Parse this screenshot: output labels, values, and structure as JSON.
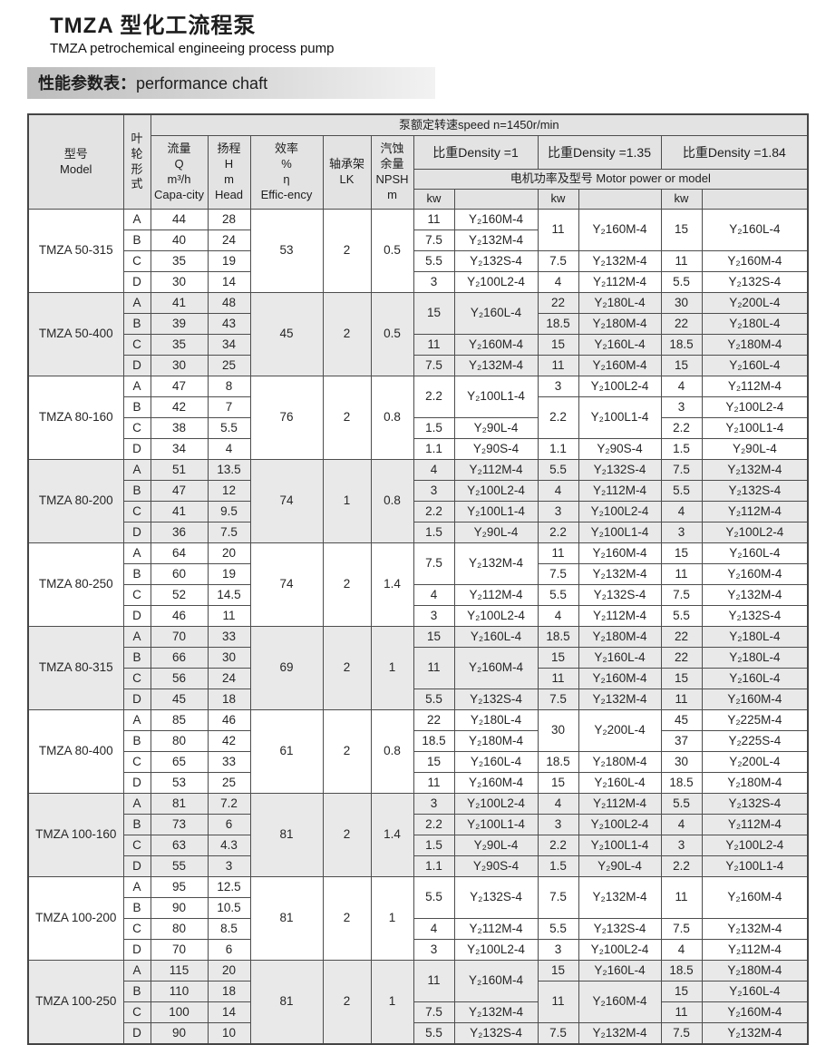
{
  "page": {
    "title_zh": "TMZA 型化工流程泵",
    "title_en": "TMZA petrochemical engineeing process pump",
    "section_zh": "性能参数表：",
    "section_en": "performance chaft"
  },
  "table": {
    "header": {
      "model": "型号\nModel",
      "impeller": "叶\n轮\n形\n式",
      "capacity": "流量\nQ\nm³/h\nCapa-city",
      "head": "扬程\nH\nm\nHead",
      "efficiency": "效率\n%\nη\nEffic-ency",
      "bearing": "轴承架\nLK",
      "npsh": "汽蚀\n余量\nNPSH\nm",
      "speed": "泵额定转速speed n=1450r/min",
      "density1": "比重Density =1",
      "density135": "比重Density =1.35",
      "density184": "比重Density =1.84",
      "motor": "电机功率及型号  Motor power or model",
      "kw": "kw"
    },
    "blocks": [
      {
        "model": "TMZA 50-315",
        "efficiency": "53",
        "bearing": "2",
        "npsh": "0.5",
        "rows": [
          {
            "type": "A",
            "q": "44",
            "h": "28"
          },
          {
            "type": "B",
            "q": "40",
            "h": "24"
          },
          {
            "type": "C",
            "q": "35",
            "h": "19"
          },
          {
            "type": "D",
            "q": "30",
            "h": "14"
          }
        ],
        "d1": [
          {
            "span": 1,
            "kw": "11",
            "model": "Y₂160M-4"
          },
          {
            "span": 1,
            "kw": "7.5",
            "model": "Y₂132M-4"
          },
          {
            "span": 1,
            "kw": "5.5",
            "model": "Y₂132S-4"
          },
          {
            "span": 1,
            "kw": "3",
            "model": "Y₂100L2-4"
          }
        ],
        "d135": [
          {
            "span": 2,
            "kw": "11",
            "model": "Y₂160M-4"
          },
          {
            "span": 1,
            "kw": "7.5",
            "model": "Y₂132M-4"
          },
          {
            "span": 1,
            "kw": "4",
            "model": "Y₂112M-4"
          }
        ],
        "d184": [
          {
            "span": 2,
            "kw": "15",
            "model": "Y₂160L-4"
          },
          {
            "span": 1,
            "kw": "11",
            "model": "Y₂160M-4"
          },
          {
            "span": 1,
            "kw": "5.5",
            "model": "Y₂132S-4"
          }
        ]
      },
      {
        "model": "TMZA 50-400",
        "efficiency": "45",
        "bearing": "2",
        "npsh": "0.5",
        "rows": [
          {
            "type": "A",
            "q": "41",
            "h": "48"
          },
          {
            "type": "B",
            "q": "39",
            "h": "43"
          },
          {
            "type": "C",
            "q": "35",
            "h": "34"
          },
          {
            "type": "D",
            "q": "30",
            "h": "25"
          }
        ],
        "d1": [
          {
            "span": 2,
            "kw": "15",
            "model": "Y₂160L-4"
          },
          {
            "span": 1,
            "kw": "11",
            "model": "Y₂160M-4"
          },
          {
            "span": 1,
            "kw": "7.5",
            "model": "Y₂132M-4"
          }
        ],
        "d135": [
          {
            "span": 1,
            "kw": "22",
            "model": "Y₂180L-4"
          },
          {
            "span": 1,
            "kw": "18.5",
            "model": "Y₂180M-4"
          },
          {
            "span": 1,
            "kw": "15",
            "model": "Y₂160L-4"
          },
          {
            "span": 1,
            "kw": "11",
            "model": "Y₂160M-4"
          }
        ],
        "d184": [
          {
            "span": 1,
            "kw": "30",
            "model": "Y₂200L-4"
          },
          {
            "span": 1,
            "kw": "22",
            "model": "Y₂180L-4"
          },
          {
            "span": 1,
            "kw": "18.5",
            "model": "Y₂180M-4"
          },
          {
            "span": 1,
            "kw": "15",
            "model": "Y₂160L-4"
          }
        ]
      },
      {
        "model": "TMZA 80-160",
        "efficiency": "76",
        "bearing": "2",
        "npsh": "0.8",
        "rows": [
          {
            "type": "A",
            "q": "47",
            "h": "8"
          },
          {
            "type": "B",
            "q": "42",
            "h": "7"
          },
          {
            "type": "C",
            "q": "38",
            "h": "5.5"
          },
          {
            "type": "D",
            "q": "34",
            "h": "4"
          }
        ],
        "d1": [
          {
            "span": 2,
            "kw": "2.2",
            "model": "Y₂100L1-4"
          },
          {
            "span": 1,
            "kw": "1.5",
            "model": "Y₂90L-4"
          },
          {
            "span": 1,
            "kw": "1.1",
            "model": "Y₂90S-4"
          }
        ],
        "d135": [
          {
            "span": 1,
            "kw": "3",
            "model": "Y₂100L2-4"
          },
          {
            "span": 2,
            "kw": "2.2",
            "model": "Y₂100L1-4"
          },
          {
            "span": 1,
            "kw": "1.1",
            "model": "Y₂90S-4"
          }
        ],
        "d184": [
          {
            "span": 1,
            "kw": "4",
            "model": "Y₂112M-4"
          },
          {
            "span": 1,
            "kw": "3",
            "model": "Y₂100L2-4"
          },
          {
            "span": 1,
            "kw": "2.2",
            "model": "Y₂100L1-4"
          },
          {
            "span": 1,
            "kw": "1.5",
            "model": "Y₂90L-4"
          }
        ]
      },
      {
        "model": "TMZA 80-200",
        "efficiency": "74",
        "bearing": "1",
        "npsh": "0.8",
        "rows": [
          {
            "type": "A",
            "q": "51",
            "h": "13.5"
          },
          {
            "type": "B",
            "q": "47",
            "h": "12"
          },
          {
            "type": "C",
            "q": "41",
            "h": "9.5"
          },
          {
            "type": "D",
            "q": "36",
            "h": "7.5"
          }
        ],
        "d1": [
          {
            "span": 1,
            "kw": "4",
            "model": "Y₂112M-4"
          },
          {
            "span": 1,
            "kw": "3",
            "model": "Y₂100L2-4"
          },
          {
            "span": 1,
            "kw": "2.2",
            "model": "Y₂100L1-4"
          },
          {
            "span": 1,
            "kw": "1.5",
            "model": "Y₂90L-4"
          }
        ],
        "d135": [
          {
            "span": 1,
            "kw": "5.5",
            "model": "Y₂132S-4"
          },
          {
            "span": 1,
            "kw": "4",
            "model": "Y₂112M-4"
          },
          {
            "span": 1,
            "kw": "3",
            "model": "Y₂100L2-4"
          },
          {
            "span": 1,
            "kw": "2.2",
            "model": "Y₂100L1-4"
          }
        ],
        "d184": [
          {
            "span": 1,
            "kw": "7.5",
            "model": "Y₂132M-4"
          },
          {
            "span": 1,
            "kw": "5.5",
            "model": "Y₂132S-4"
          },
          {
            "span": 1,
            "kw": "4",
            "model": "Y₂112M-4"
          },
          {
            "span": 1,
            "kw": "3",
            "model": "Y₂100L2-4"
          }
        ]
      },
      {
        "model": "TMZA 80-250",
        "efficiency": "74",
        "bearing": "2",
        "npsh": "1.4",
        "rows": [
          {
            "type": "A",
            "q": "64",
            "h": "20"
          },
          {
            "type": "B",
            "q": "60",
            "h": "19"
          },
          {
            "type": "C",
            "q": "52",
            "h": "14.5"
          },
          {
            "type": "D",
            "q": "46",
            "h": "11"
          }
        ],
        "d1": [
          {
            "span": 2,
            "kw": "7.5",
            "model": "Y₂132M-4"
          },
          {
            "span": 1,
            "kw": "4",
            "model": "Y₂112M-4"
          },
          {
            "span": 1,
            "kw": "3",
            "model": "Y₂100L2-4"
          }
        ],
        "d135": [
          {
            "span": 1,
            "kw": "11",
            "model": "Y₂160M-4"
          },
          {
            "span": 1,
            "kw": "7.5",
            "model": "Y₂132M-4"
          },
          {
            "span": 1,
            "kw": "5.5",
            "model": "Y₂132S-4"
          },
          {
            "span": 1,
            "kw": "4",
            "model": "Y₂112M-4"
          }
        ],
        "d184": [
          {
            "span": 1,
            "kw": "15",
            "model": "Y₂160L-4"
          },
          {
            "span": 1,
            "kw": "11",
            "model": "Y₂160M-4"
          },
          {
            "span": 1,
            "kw": "7.5",
            "model": "Y₂132M-4"
          },
          {
            "span": 1,
            "kw": "5.5",
            "model": "Y₂132S-4"
          }
        ]
      },
      {
        "model": "TMZA 80-315",
        "efficiency": "69",
        "bearing": "2",
        "npsh": "1",
        "rows": [
          {
            "type": "A",
            "q": "70",
            "h": "33"
          },
          {
            "type": "B",
            "q": "66",
            "h": "30"
          },
          {
            "type": "C",
            "q": "56",
            "h": "24"
          },
          {
            "type": "D",
            "q": "45",
            "h": "18"
          }
        ],
        "d1": [
          {
            "span": 1,
            "kw": "15",
            "model": "Y₂160L-4"
          },
          {
            "span": 2,
            "kw": "11",
            "model": "Y₂160M-4"
          },
          {
            "span": 1,
            "kw": "5.5",
            "model": "Y₂132S-4"
          }
        ],
        "d135": [
          {
            "span": 1,
            "kw": "18.5",
            "model": "Y₂180M-4"
          },
          {
            "span": 1,
            "kw": "15",
            "model": "Y₂160L-4"
          },
          {
            "span": 1,
            "kw": "11",
            "model": "Y₂160M-4"
          },
          {
            "span": 1,
            "kw": "7.5",
            "model": "Y₂132M-4"
          }
        ],
        "d184": [
          {
            "span": 1,
            "kw": "22",
            "model": "Y₂180L-4"
          },
          {
            "span": 1,
            "kw": "22",
            "model": "Y₂180L-4"
          },
          {
            "span": 1,
            "kw": "15",
            "model": "Y₂160L-4"
          },
          {
            "span": 1,
            "kw": "11",
            "model": "Y₂160M-4"
          }
        ]
      },
      {
        "model": "TMZA 80-400",
        "efficiency": "61",
        "bearing": "2",
        "npsh": "0.8",
        "rows": [
          {
            "type": "A",
            "q": "85",
            "h": "46"
          },
          {
            "type": "B",
            "q": "80",
            "h": "42"
          },
          {
            "type": "C",
            "q": "65",
            "h": "33"
          },
          {
            "type": "D",
            "q": "53",
            "h": "25"
          }
        ],
        "d1": [
          {
            "span": 1,
            "kw": "22",
            "model": "Y₂180L-4"
          },
          {
            "span": 1,
            "kw": "18.5",
            "model": "Y₂180M-4"
          },
          {
            "span": 1,
            "kw": "15",
            "model": "Y₂160L-4"
          },
          {
            "span": 1,
            "kw": "11",
            "model": "Y₂160M-4"
          }
        ],
        "d135": [
          {
            "span": 2,
            "kw": "30",
            "model": "Y₂200L-4"
          },
          {
            "span": 1,
            "kw": "18.5",
            "model": "Y₂180M-4"
          },
          {
            "span": 1,
            "kw": "15",
            "model": "Y₂160L-4"
          }
        ],
        "d184": [
          {
            "span": 1,
            "kw": "45",
            "model": "Y₂225M-4"
          },
          {
            "span": 1,
            "kw": "37",
            "model": "Y₂225S-4"
          },
          {
            "span": 1,
            "kw": "30",
            "model": "Y₂200L-4"
          },
          {
            "span": 1,
            "kw": "18.5",
            "model": "Y₂180M-4"
          }
        ]
      },
      {
        "model": "TMZA 100-160",
        "efficiency": "81",
        "bearing": "2",
        "npsh": "1.4",
        "rows": [
          {
            "type": "A",
            "q": "81",
            "h": "7.2"
          },
          {
            "type": "B",
            "q": "73",
            "h": "6"
          },
          {
            "type": "C",
            "q": "63",
            "h": "4.3"
          },
          {
            "type": "D",
            "q": "55",
            "h": "3"
          }
        ],
        "d1": [
          {
            "span": 1,
            "kw": "3",
            "model": "Y₂100L2-4"
          },
          {
            "span": 1,
            "kw": "2.2",
            "model": "Y₂100L1-4"
          },
          {
            "span": 1,
            "kw": "1.5",
            "model": "Y₂90L-4"
          },
          {
            "span": 1,
            "kw": "1.1",
            "model": "Y₂90S-4"
          }
        ],
        "d135": [
          {
            "span": 1,
            "kw": "4",
            "model": "Y₂112M-4"
          },
          {
            "span": 1,
            "kw": "3",
            "model": "Y₂100L2-4"
          },
          {
            "span": 1,
            "kw": "2.2",
            "model": "Y₂100L1-4"
          },
          {
            "span": 1,
            "kw": "1.5",
            "model": "Y₂90L-4"
          }
        ],
        "d184": [
          {
            "span": 1,
            "kw": "5.5",
            "model": "Y₂132S-4"
          },
          {
            "span": 1,
            "kw": "4",
            "model": "Y₂112M-4"
          },
          {
            "span": 1,
            "kw": "3",
            "model": "Y₂100L2-4"
          },
          {
            "span": 1,
            "kw": "2.2",
            "model": "Y₂100L1-4"
          }
        ]
      },
      {
        "model": "TMZA 100-200",
        "efficiency": "81",
        "bearing": "2",
        "npsh": "1",
        "rows": [
          {
            "type": "A",
            "q": "95",
            "h": "12.5"
          },
          {
            "type": "B",
            "q": "90",
            "h": "10.5"
          },
          {
            "type": "C",
            "q": "80",
            "h": "8.5"
          },
          {
            "type": "D",
            "q": "70",
            "h": "6"
          }
        ],
        "d1": [
          {
            "span": 2,
            "kw": "5.5",
            "model": "Y₂132S-4"
          },
          {
            "span": 1,
            "kw": "4",
            "model": "Y₂112M-4"
          },
          {
            "span": 1,
            "kw": "3",
            "model": "Y₂100L2-4"
          }
        ],
        "d135": [
          {
            "span": 2,
            "kw": "7.5",
            "model": "Y₂132M-4"
          },
          {
            "span": 1,
            "kw": "5.5",
            "model": "Y₂132S-4"
          },
          {
            "span": 1,
            "kw": "3",
            "model": "Y₂100L2-4"
          }
        ],
        "d184": [
          {
            "span": 2,
            "kw": "11",
            "model": "Y₂160M-4"
          },
          {
            "span": 1,
            "kw": "7.5",
            "model": "Y₂132M-4"
          },
          {
            "span": 1,
            "kw": "4",
            "model": "Y₂112M-4"
          }
        ]
      },
      {
        "model": "TMZA 100-250",
        "efficiency": "81",
        "bearing": "2",
        "npsh": "1",
        "rows": [
          {
            "type": "A",
            "q": "115",
            "h": "20"
          },
          {
            "type": "B",
            "q": "110",
            "h": "18"
          },
          {
            "type": "C",
            "q": "100",
            "h": "14"
          },
          {
            "type": "D",
            "q": "90",
            "h": "10"
          }
        ],
        "d1": [
          {
            "span": 2,
            "kw": "11",
            "model": "Y₂160M-4"
          },
          {
            "span": 1,
            "kw": "7.5",
            "model": "Y₂132M-4"
          },
          {
            "span": 1,
            "kw": "5.5",
            "model": "Y₂132S-4"
          }
        ],
        "d135": [
          {
            "span": 1,
            "kw": "15",
            "model": "Y₂160L-4"
          },
          {
            "span": 2,
            "kw": "11",
            "model": "Y₂160M-4"
          },
          {
            "span": 1,
            "kw": "7.5",
            "model": "Y₂132M-4"
          }
        ],
        "d184": [
          {
            "span": 1,
            "kw": "18.5",
            "model": "Y₂180M-4"
          },
          {
            "span": 1,
            "kw": "15",
            "model": "Y₂160L-4"
          },
          {
            "span": 1,
            "kw": "11",
            "model": "Y₂160M-4"
          },
          {
            "span": 1,
            "kw": "7.5",
            "model": "Y₂132M-4"
          }
        ]
      }
    ]
  }
}
